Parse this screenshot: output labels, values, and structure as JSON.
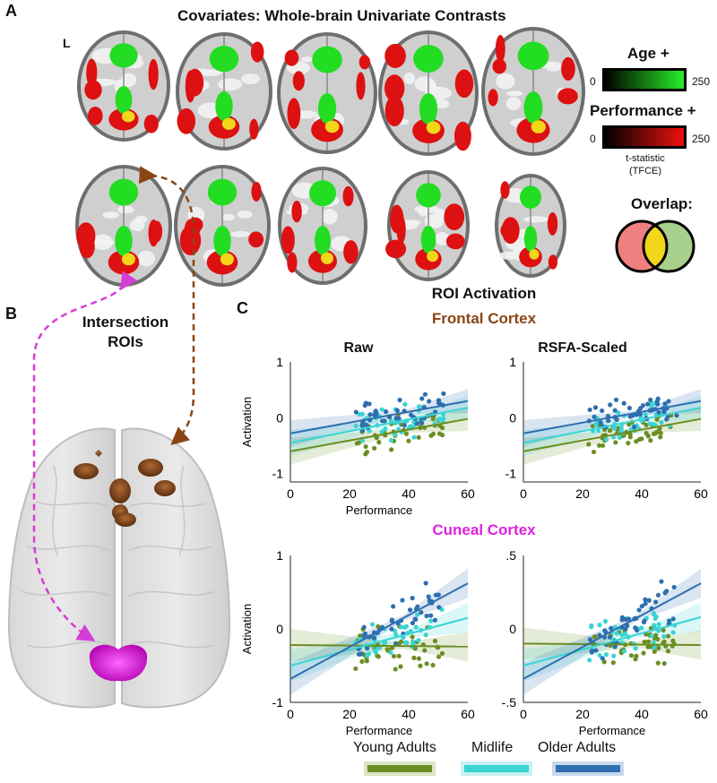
{
  "panel_a": {
    "letter": "A",
    "title": "Covariates: Whole-brain Univariate Contrasts",
    "left_marker": "L",
    "age_label": "Age +",
    "perf_label": "Performance +",
    "cb_min": "0",
    "cb_max": "250",
    "tstat_label": "t-statistic",
    "tfce_label": "(TFCE)",
    "overlap_label": "Overlap:",
    "colors": {
      "age": "#22dd22",
      "performance": "#dd1111",
      "overlap": "#f2d61a"
    }
  },
  "panel_b": {
    "letter": "B",
    "title_line1": "Intersection",
    "title_line2": "ROIs",
    "colors": {
      "frontal": "#8b4513",
      "cuneal": "#e020e0"
    }
  },
  "panel_c": {
    "letter": "C",
    "title": "ROI Activation",
    "frontal_title": "Frontal Cortex",
    "cuneal_title": "Cuneal Cortex",
    "col_raw": "Raw",
    "col_scaled": "RSFA-Scaled",
    "ylabel": "Activation",
    "xlabel": "Performance"
  },
  "legend": {
    "items": [
      {
        "label": "Young Adults",
        "color": "#6b8e23"
      },
      {
        "label": "Midlife",
        "color": "#3ad4d4"
      },
      {
        "label": "Older Adults",
        "color": "#2e6fb0"
      }
    ]
  },
  "chart_data": [
    {
      "type": "scatter",
      "title": "Frontal Cortex — Raw",
      "xlabel": "Performance",
      "ylabel": "Activation",
      "xlim": [
        0,
        60
      ],
      "ylim": [
        -1.15,
        1.0
      ],
      "xticks": [
        "0",
        "20",
        "40",
        "60"
      ],
      "yticks": [
        "1",
        "0",
        "-1"
      ],
      "ytick_values": [
        1,
        0,
        -1
      ],
      "series": [
        {
          "name": "Young Adults",
          "fit": [
            [
              0,
              -0.6
            ],
            [
              60,
              -0.02
            ]
          ]
        },
        {
          "name": "Midlife",
          "fit": [
            [
              0,
              -0.45
            ],
            [
              60,
              0.18
            ]
          ]
        },
        {
          "name": "Older Adults",
          "fit": [
            [
              0,
              -0.28
            ],
            [
              60,
              0.3
            ]
          ]
        }
      ]
    },
    {
      "type": "scatter",
      "title": "Frontal Cortex — RSFA-Scaled",
      "xlabel": "",
      "ylabel": "",
      "xlim": [
        0,
        60
      ],
      "ylim": [
        -1.15,
        1.0
      ],
      "xticks": [
        "0",
        "20",
        "40",
        "60"
      ],
      "yticks": [
        "1",
        "0",
        "-1"
      ],
      "ytick_values": [
        1,
        0,
        -1
      ],
      "series": [
        {
          "name": "Young Adults",
          "fit": [
            [
              0,
              -0.6
            ],
            [
              60,
              -0.02
            ]
          ]
        },
        {
          "name": "Midlife",
          "fit": [
            [
              0,
              -0.45
            ],
            [
              60,
              0.18
            ]
          ]
        },
        {
          "name": "Older Adults",
          "fit": [
            [
              0,
              -0.28
            ],
            [
              60,
              0.3
            ]
          ]
        }
      ]
    },
    {
      "type": "scatter",
      "title": "Cuneal Cortex — Raw",
      "xlabel": "Performance",
      "ylabel": "Activation",
      "xlim": [
        0,
        60
      ],
      "ylim": [
        -1.0,
        1.0
      ],
      "xticks": [
        "0",
        "20",
        "40",
        "60"
      ],
      "yticks": [
        "1",
        "0",
        "-1"
      ],
      "ytick_values": [
        1,
        0,
        -1
      ],
      "series": [
        {
          "name": "Young Adults",
          "fit": [
            [
              0,
              -0.22
            ],
            [
              60,
              -0.24
            ]
          ]
        },
        {
          "name": "Midlife",
          "fit": [
            [
              0,
              -0.5
            ],
            [
              60,
              0.15
            ]
          ]
        },
        {
          "name": "Older Adults",
          "fit": [
            [
              0,
              -0.68
            ],
            [
              60,
              0.62
            ]
          ]
        }
      ]
    },
    {
      "type": "scatter",
      "title": "Cuneal Cortex — RSFA-Scaled",
      "xlabel": "Performance",
      "ylabel": "",
      "xlim": [
        0,
        60
      ],
      "ylim": [
        -0.5,
        0.5
      ],
      "xticks": [
        "0",
        "20",
        "40",
        "60"
      ],
      "yticks": [
        ".5",
        "0",
        "-.5"
      ],
      "ytick_values": [
        0.5,
        0,
        -0.5
      ],
      "series": [
        {
          "name": "Young Adults",
          "fit": [
            [
              0,
              -0.1
            ],
            [
              60,
              -0.11
            ]
          ]
        },
        {
          "name": "Midlife",
          "fit": [
            [
              0,
              -0.25
            ],
            [
              60,
              0.08
            ]
          ]
        },
        {
          "name": "Older Adults",
          "fit": [
            [
              0,
              -0.34
            ],
            [
              60,
              0.31
            ]
          ]
        }
      ]
    }
  ]
}
